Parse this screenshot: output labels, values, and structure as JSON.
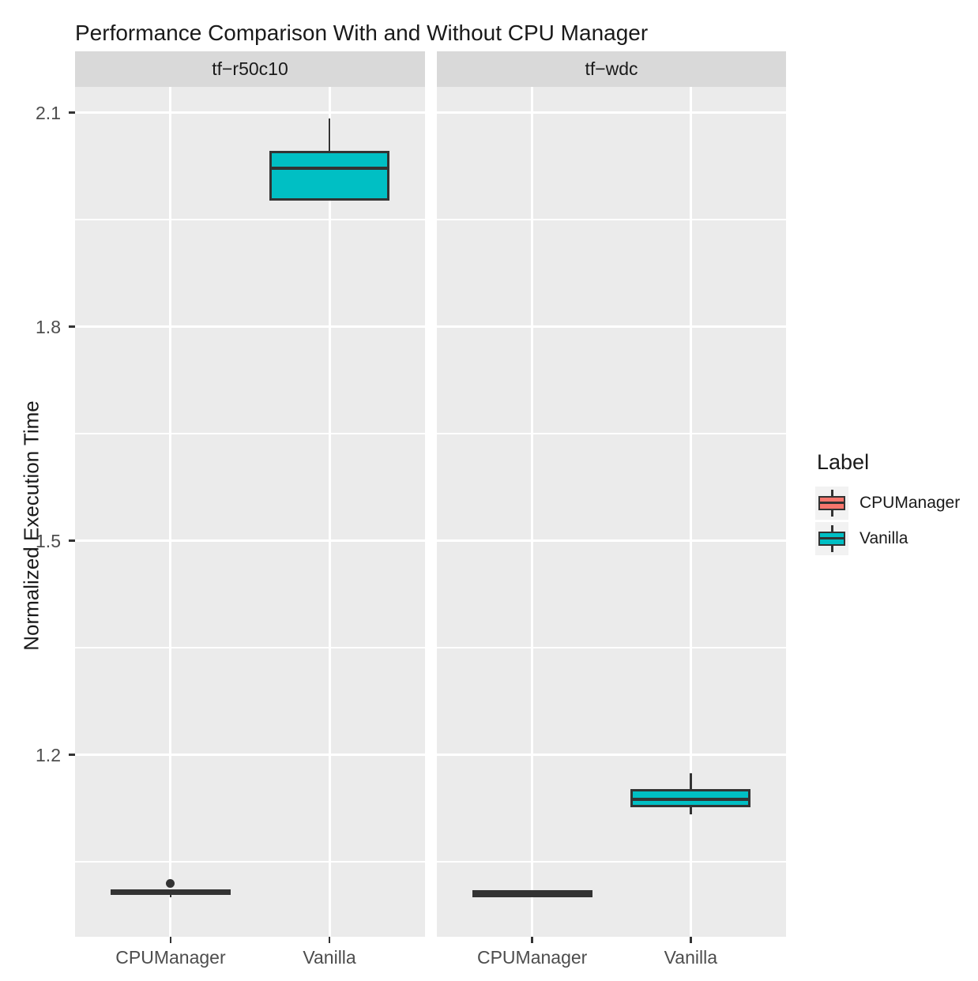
{
  "chart_data": {
    "type": "boxplot",
    "title": "Performance Comparison With and Without CPU Manager",
    "ylabel": "Normalized Execution Time",
    "xlabel": "",
    "ylim": [
      0.945,
      2.136
    ],
    "y_major_ticks": [
      2.1,
      1.8,
      1.5,
      1.2
    ],
    "y_minor_ticks": [
      1.95,
      1.65,
      1.35,
      1.05
    ],
    "categories": [
      "CPUManager",
      "Vanilla"
    ],
    "grid": true,
    "legend": {
      "position": "right",
      "title": "Label",
      "items": [
        {
          "label": "CPUManager",
          "color": "#F8766D"
        },
        {
          "label": "Vanilla",
          "color": "#00BFC4"
        }
      ]
    },
    "facets": [
      {
        "label": "tf−r50c10",
        "boxes": [
          {
            "category": "CPUManager",
            "group": "CPUManager",
            "color": "#F8766D",
            "stats": {
              "lower_whisker": 1.0,
              "q1": 1.004,
              "median": 1.008,
              "q3": 1.011,
              "upper_whisker": 1.011
            },
            "outliers": [
              1.02
            ]
          },
          {
            "category": "Vanilla",
            "group": "Vanilla",
            "color": "#00BFC4",
            "stats": {
              "lower_whisker": 1.977,
              "q1": 1.977,
              "median": 2.022,
              "q3": 2.046,
              "upper_whisker": 2.092
            },
            "outliers": []
          }
        ]
      },
      {
        "label": "tf−wdc",
        "boxes": [
          {
            "category": "CPUManager",
            "group": "CPUManager",
            "color": "#F8766D",
            "stats": {
              "lower_whisker": 1.0,
              "q1": 1.0,
              "median": 1.005,
              "q3": 1.01,
              "upper_whisker": 1.01
            },
            "outliers": []
          },
          {
            "category": "Vanilla",
            "group": "Vanilla",
            "color": "#00BFC4",
            "stats": {
              "lower_whisker": 1.117,
              "q1": 1.127,
              "median": 1.138,
              "q3": 1.152,
              "upper_whisker": 1.174
            },
            "outliers": []
          }
        ]
      }
    ],
    "colors": {
      "panel_bg": "#EBEBEB",
      "strip_bg": "#D9D9D9",
      "grid": "#FFFFFF",
      "box_edge": "#333333",
      "tick_label": "#4D4D4D",
      "text": "#1A1A1A",
      "legend_key_bg": "#F2F2F2"
    }
  }
}
